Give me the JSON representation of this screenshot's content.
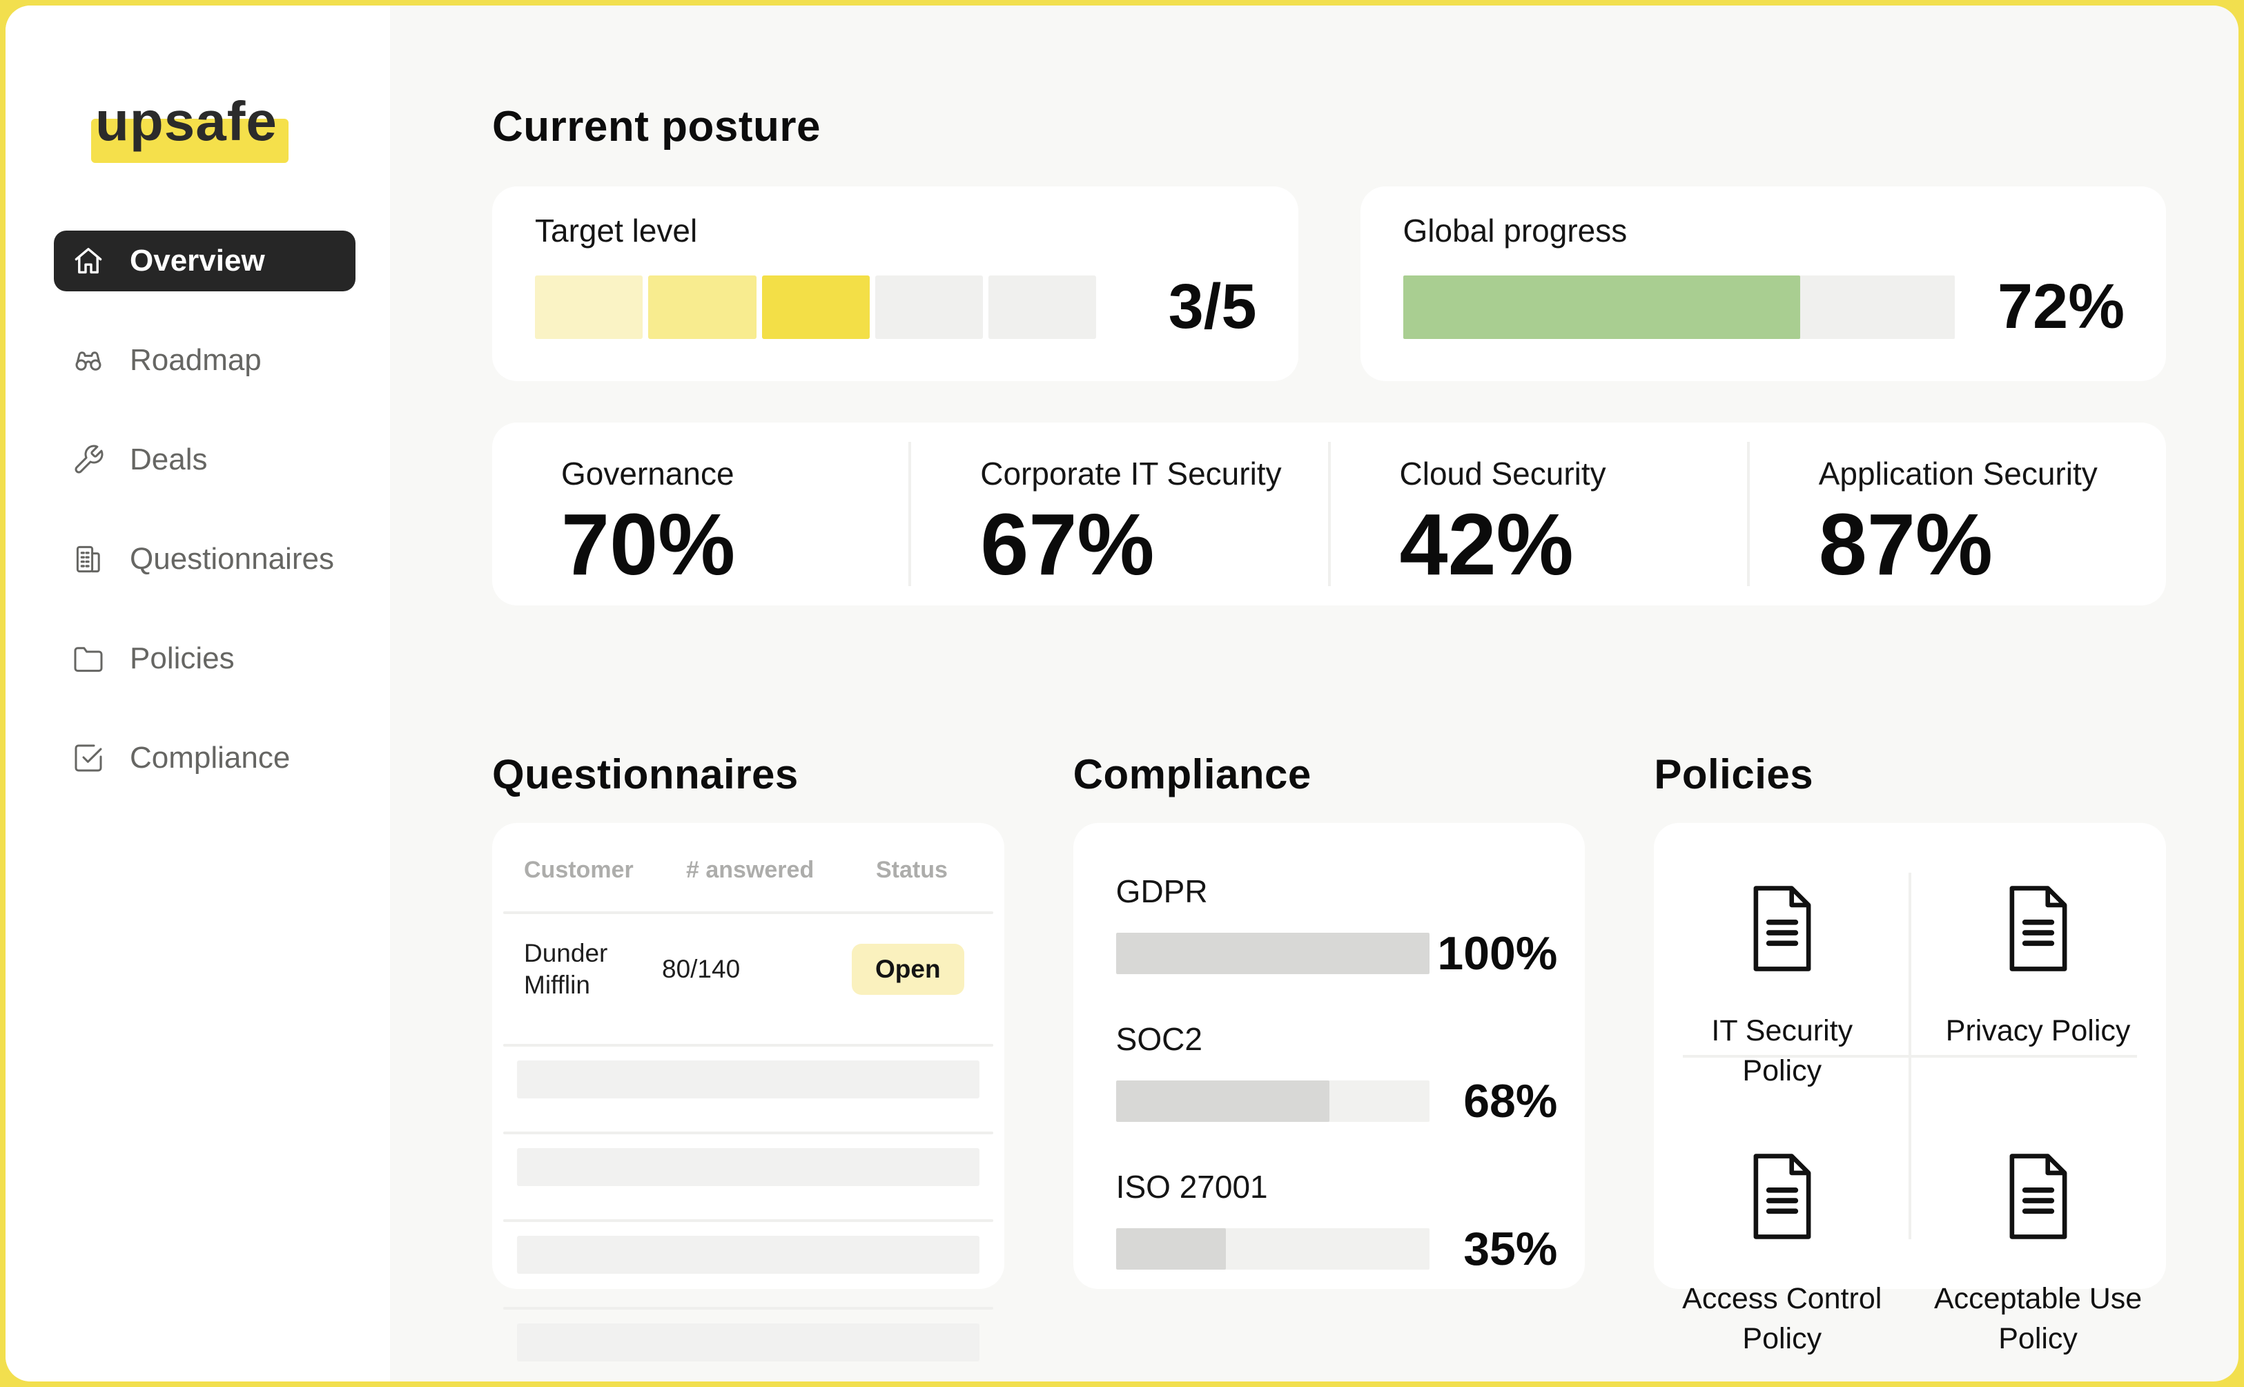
{
  "colors": {
    "frame_border": "#F2DF4E",
    "logo_highlight": "#F5E04B",
    "active_pill_bg": "#262626",
    "global_progress_fill": "#A9CE91",
    "compliance_fill": "#D8D8D6",
    "badge_bg": "#FAF1BE"
  },
  "brand": {
    "name": "upsafe"
  },
  "sidebar": {
    "items": [
      {
        "label": "Overview",
        "icon": "home-icon",
        "active": true
      },
      {
        "label": "Roadmap",
        "icon": "binoculars-icon",
        "active": false
      },
      {
        "label": "Deals",
        "icon": "wrench-icon",
        "active": false
      },
      {
        "label": "Questionnaires",
        "icon": "questionnaire-icon",
        "active": false
      },
      {
        "label": "Policies",
        "icon": "folder-icon",
        "active": false
      },
      {
        "label": "Compliance",
        "icon": "check-square-icon",
        "active": false
      }
    ]
  },
  "current_posture": {
    "title": "Current posture",
    "target_level": {
      "label": "Target level",
      "value": "3/5",
      "levels_filled": 3,
      "levels_total": 5,
      "segment_colors": [
        "#FAF3C5",
        "#F8EC8F",
        "#F3DF47",
        "#F0F0EE",
        "#F0F0EE"
      ]
    },
    "global_progress": {
      "label": "Global progress",
      "value": "72%",
      "percent": 72
    },
    "metrics": [
      {
        "label": "Governance",
        "value": "70%"
      },
      {
        "label": "Corporate IT Security",
        "value": "67%"
      },
      {
        "label": "Cloud Security",
        "value": "42%"
      },
      {
        "label": "Application Security",
        "value": "87%"
      }
    ]
  },
  "questionnaires": {
    "title": "Questionnaires",
    "columns": [
      "Customer",
      "# answered",
      "Status"
    ],
    "rows": [
      {
        "customer": "Dunder Mifflin",
        "answered": "80/140",
        "status": "Open"
      }
    ],
    "placeholder_rows": 4
  },
  "compliance": {
    "title": "Compliance",
    "items": [
      {
        "label": "GDPR",
        "value": "100%",
        "percent": 100
      },
      {
        "label": "SOC2",
        "value": "68%",
        "percent": 68
      },
      {
        "label": "ISO 27001",
        "value": "35%",
        "percent": 35
      }
    ]
  },
  "policies": {
    "title": "Policies",
    "items": [
      {
        "label": "IT Security Policy"
      },
      {
        "label": "Privacy Policy"
      },
      {
        "label": "Access Control Policy"
      },
      {
        "label": "Acceptable Use Policy"
      }
    ]
  }
}
